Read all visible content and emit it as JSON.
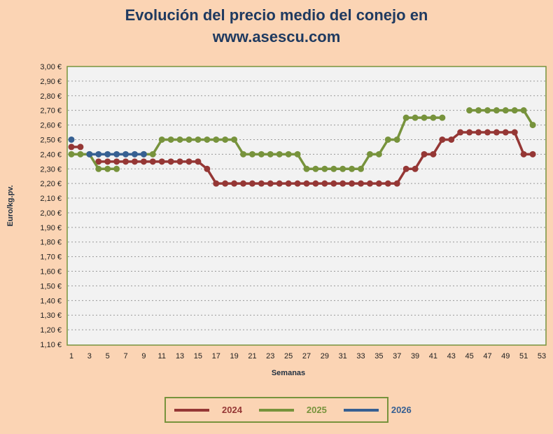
{
  "title_line1": "Evolución del precio medio del conejo en",
  "title_line2": "www.asescu.com",
  "chart_data": {
    "type": "line",
    "title": "Evolución del precio medio del conejo en www.asescu.com",
    "xlabel": "Semanas",
    "ylabel": "Euro/kg.pv.",
    "ylim": [
      1.1,
      3.0
    ],
    "xlim": [
      1,
      53
    ],
    "x_ticks": [
      1,
      3,
      5,
      7,
      9,
      11,
      13,
      15,
      17,
      19,
      21,
      23,
      25,
      27,
      29,
      31,
      33,
      35,
      37,
      39,
      41,
      43,
      45,
      47,
      49,
      51,
      53
    ],
    "y_tick_step": 0.1,
    "grid": true,
    "legend": "bottom",
    "series": [
      {
        "name": "2024",
        "color": "#953735",
        "values": [
          2.45,
          2.45,
          null,
          2.35,
          2.35,
          2.35,
          2.35,
          2.35,
          2.35,
          2.35,
          2.35,
          2.35,
          2.35,
          2.35,
          2.35,
          2.3,
          2.2,
          2.2,
          2.2,
          2.2,
          2.2,
          2.2,
          2.2,
          2.2,
          2.2,
          2.2,
          2.2,
          2.2,
          2.2,
          2.2,
          2.2,
          2.2,
          2.2,
          2.2,
          2.2,
          2.2,
          2.2,
          2.3,
          2.3,
          2.4,
          2.4,
          2.5,
          2.5,
          2.55,
          2.55,
          2.55,
          2.55,
          2.55,
          2.55,
          2.55,
          2.4,
          2.4
        ]
      },
      {
        "name": "2025",
        "color": "#77933C",
        "values": [
          2.4,
          2.4,
          2.4,
          2.3,
          2.3,
          2.3,
          null,
          null,
          2.4,
          2.4,
          2.5,
          2.5,
          2.5,
          2.5,
          2.5,
          2.5,
          2.5,
          2.5,
          2.5,
          2.4,
          2.4,
          2.4,
          2.4,
          2.4,
          2.4,
          2.4,
          2.3,
          2.3,
          2.3,
          2.3,
          2.3,
          2.3,
          2.3,
          2.4,
          2.4,
          2.5,
          2.5,
          2.65,
          2.65,
          2.65,
          2.65,
          2.65,
          null,
          null,
          2.7,
          2.7,
          2.7,
          2.7,
          2.7,
          2.7,
          2.7,
          2.6
        ]
      },
      {
        "name": "2026",
        "color": "#376092",
        "values": [
          2.5,
          null,
          2.4,
          2.4,
          2.4,
          2.4,
          2.4,
          2.4,
          2.4
        ]
      }
    ]
  }
}
